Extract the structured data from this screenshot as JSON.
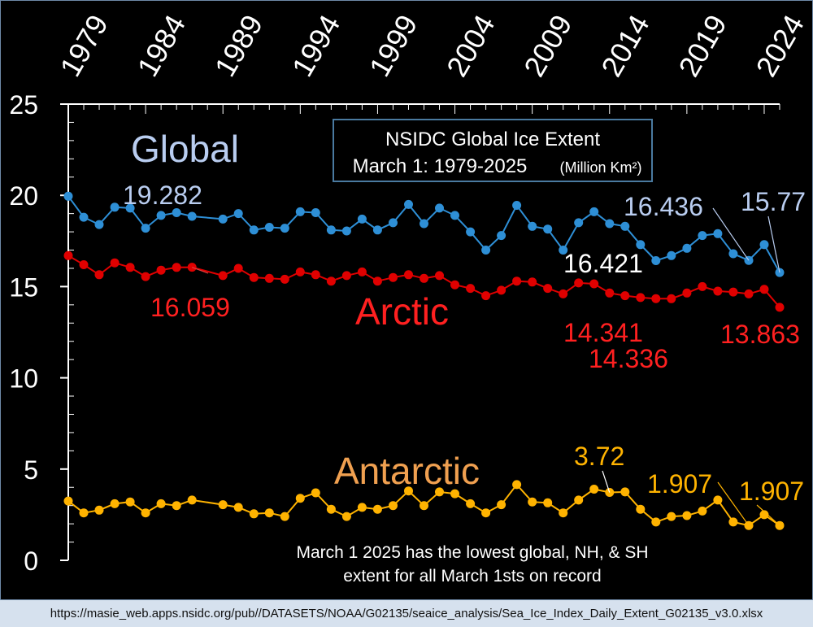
{
  "chart_data": {
    "type": "line",
    "title_line1": "NSIDC Global Ice Extent",
    "title_line2_main": "March 1: 1979-2025",
    "title_line2_units": "(Million Km²)",
    "xlabel": "",
    "ylabel": "",
    "ylim": [
      0,
      25
    ],
    "yticks": [
      0,
      5,
      10,
      15,
      20,
      25
    ],
    "xticks": [
      1979,
      1984,
      1989,
      1994,
      1999,
      2004,
      2009,
      2014,
      2019,
      2024
    ],
    "xlim": [
      1979,
      2025
    ],
    "grid": false,
    "series": [
      {
        "name": "Global",
        "color": "#2e8fd6",
        "label_color": "#b9cdf0",
        "points": [
          [
            1979,
            19.95
          ],
          [
            1980,
            18.8
          ],
          [
            1981,
            18.4
          ],
          [
            1982,
            19.35
          ],
          [
            1983,
            19.3
          ],
          [
            1984,
            18.2
          ],
          [
            1985,
            18.9
          ],
          [
            1986,
            19.05
          ],
          [
            1987,
            18.85
          ],
          [
            1989,
            18.7
          ],
          [
            1990,
            19.0
          ],
          [
            1991,
            18.1
          ],
          [
            1992,
            18.25
          ],
          [
            1993,
            18.2
          ],
          [
            1994,
            19.1
          ],
          [
            1995,
            19.05
          ],
          [
            1996,
            18.1
          ],
          [
            1997,
            18.05
          ],
          [
            1998,
            18.7
          ],
          [
            1999,
            18.1
          ],
          [
            2000,
            18.5
          ],
          [
            2001,
            19.5
          ],
          [
            2002,
            18.45
          ],
          [
            2003,
            19.3
          ],
          [
            2004,
            18.9
          ],
          [
            2005,
            18.0
          ],
          [
            2006,
            17.0
          ],
          [
            2007,
            17.8
          ],
          [
            2008,
            19.45
          ],
          [
            2009,
            18.3
          ],
          [
            2010,
            18.15
          ],
          [
            2011,
            17.0
          ],
          [
            2012,
            18.5
          ],
          [
            2013,
            19.1
          ],
          [
            2014,
            18.45
          ],
          [
            2015,
            18.3
          ],
          [
            2016,
            17.3
          ],
          [
            2017,
            16.421
          ],
          [
            2018,
            16.7
          ],
          [
            2019,
            17.1
          ],
          [
            2020,
            17.8
          ],
          [
            2021,
            17.9
          ],
          [
            2022,
            16.8
          ],
          [
            2023,
            16.436
          ],
          [
            2024,
            17.3
          ],
          [
            2025,
            15.77
          ]
        ]
      },
      {
        "name": "Arctic",
        "color": "#e00000",
        "label_color": "#ff2020",
        "points": [
          [
            1979,
            16.7
          ],
          [
            1980,
            16.2
          ],
          [
            1981,
            15.65
          ],
          [
            1982,
            16.3
          ],
          [
            1983,
            16.05
          ],
          [
            1984,
            15.55
          ],
          [
            1985,
            15.9
          ],
          [
            1986,
            16.05
          ],
          [
            1987,
            16.059
          ],
          [
            1989,
            15.6
          ],
          [
            1990,
            16.0
          ],
          [
            1991,
            15.5
          ],
          [
            1992,
            15.45
          ],
          [
            1993,
            15.4
          ],
          [
            1994,
            15.8
          ],
          [
            1995,
            15.65
          ],
          [
            1996,
            15.3
          ],
          [
            1997,
            15.6
          ],
          [
            1998,
            15.8
          ],
          [
            1999,
            15.3
          ],
          [
            2000,
            15.5
          ],
          [
            2001,
            15.65
          ],
          [
            2002,
            15.45
          ],
          [
            2003,
            15.6
          ],
          [
            2004,
            15.1
          ],
          [
            2005,
            14.9
          ],
          [
            2006,
            14.5
          ],
          [
            2007,
            14.8
          ],
          [
            2008,
            15.3
          ],
          [
            2009,
            15.25
          ],
          [
            2010,
            14.9
          ],
          [
            2011,
            14.6
          ],
          [
            2012,
            15.2
          ],
          [
            2013,
            15.15
          ],
          [
            2014,
            14.65
          ],
          [
            2015,
            14.5
          ],
          [
            2016,
            14.4
          ],
          [
            2017,
            14.341
          ],
          [
            2018,
            14.336
          ],
          [
            2019,
            14.65
          ],
          [
            2020,
            15.0
          ],
          [
            2021,
            14.75
          ],
          [
            2022,
            14.7
          ],
          [
            2023,
            14.6
          ],
          [
            2024,
            14.85
          ],
          [
            2025,
            13.863
          ]
        ]
      },
      {
        "name": "Antarctic",
        "color": "#ffb300",
        "label_color": "#f0a050",
        "points": [
          [
            1979,
            3.25
          ],
          [
            1980,
            2.6
          ],
          [
            1981,
            2.75
          ],
          [
            1982,
            3.1
          ],
          [
            1983,
            3.2
          ],
          [
            1984,
            2.6
          ],
          [
            1985,
            3.1
          ],
          [
            1986,
            3.0
          ],
          [
            1987,
            3.3
          ],
          [
            1989,
            3.05
          ],
          [
            1990,
            2.9
          ],
          [
            1991,
            2.55
          ],
          [
            1992,
            2.6
          ],
          [
            1993,
            2.4
          ],
          [
            1994,
            3.4
          ],
          [
            1995,
            3.7
          ],
          [
            1996,
            2.8
          ],
          [
            1997,
            2.4
          ],
          [
            1998,
            2.9
          ],
          [
            1999,
            2.8
          ],
          [
            2000,
            3.0
          ],
          [
            2001,
            3.8
          ],
          [
            2002,
            3.0
          ],
          [
            2003,
            3.75
          ],
          [
            2004,
            3.65
          ],
          [
            2005,
            3.1
          ],
          [
            2006,
            2.6
          ],
          [
            2007,
            3.05
          ],
          [
            2008,
            4.15
          ],
          [
            2009,
            3.2
          ],
          [
            2010,
            3.15
          ],
          [
            2011,
            2.6
          ],
          [
            2012,
            3.3
          ],
          [
            2013,
            3.9
          ],
          [
            2014,
            3.72
          ],
          [
            2015,
            3.75
          ],
          [
            2016,
            2.8
          ],
          [
            2017,
            2.1
          ],
          [
            2018,
            2.4
          ],
          [
            2019,
            2.45
          ],
          [
            2020,
            2.7
          ],
          [
            2021,
            3.3
          ],
          [
            2022,
            2.1
          ],
          [
            2023,
            1.907
          ],
          [
            2024,
            2.5
          ],
          [
            2025,
            1.907
          ]
        ]
      }
    ],
    "annotations": [
      {
        "series": "Global",
        "text": "19.282"
      },
      {
        "series": "Global",
        "text": "16.436"
      },
      {
        "series": "Global",
        "text": "15.77"
      },
      {
        "series": "Global",
        "text": "16.421"
      },
      {
        "series": "Arctic",
        "text": "16.059"
      },
      {
        "series": "Arctic",
        "text": "14.341"
      },
      {
        "series": "Arctic",
        "text": "14.336"
      },
      {
        "series": "Arctic",
        "text": "13.863"
      },
      {
        "series": "Antarctic",
        "text": "3.72"
      },
      {
        "series": "Antarctic",
        "text": "1.907"
      },
      {
        "series": "Antarctic",
        "text": "1.907"
      }
    ],
    "note_line1": "March 1 2025 has the lowest global, NH, & SH",
    "note_line2": "extent for all March 1sts on record"
  },
  "footer": {
    "source_url": "https://masie_web.apps.nsidc.org/pub//DATASETS/NOAA/G02135/seaice_analysis/Sea_Ice_Index_Daily_Extent_G02135_v3.0.xlsx"
  },
  "colors": {
    "background": "#000000",
    "footer_bg": "#d6e1ee",
    "title_box_border": "#4a7aa0",
    "axis": "#ffffff"
  }
}
